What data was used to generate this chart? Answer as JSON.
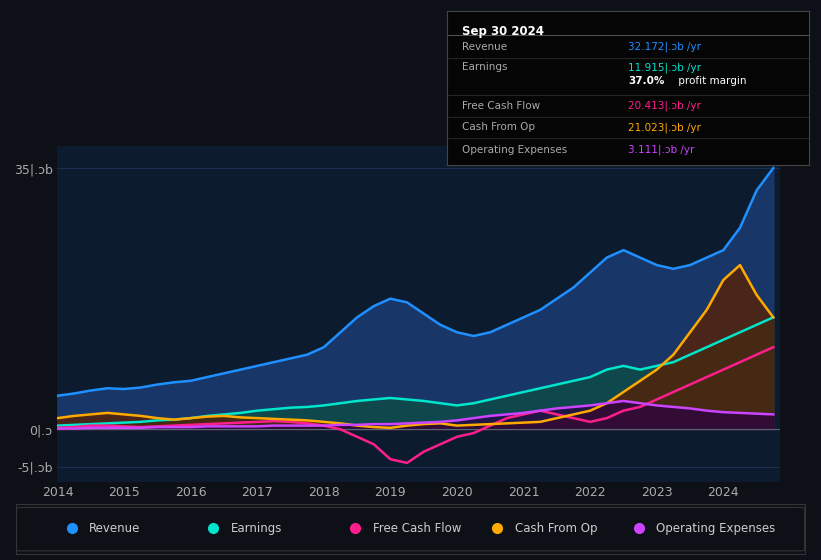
{
  "bg_color": "#0d1117",
  "plot_bg_color": "#0d1b2e",
  "grid_color": "#1e3050",
  "years": [
    2014.0,
    2014.25,
    2014.5,
    2014.75,
    2015.0,
    2015.25,
    2015.5,
    2015.75,
    2016.0,
    2016.25,
    2016.5,
    2016.75,
    2017.0,
    2017.25,
    2017.5,
    2017.75,
    2018.0,
    2018.25,
    2018.5,
    2018.75,
    2019.0,
    2019.25,
    2019.5,
    2019.75,
    2020.0,
    2020.25,
    2020.5,
    2020.75,
    2021.0,
    2021.25,
    2021.5,
    2021.75,
    2022.0,
    2022.25,
    2022.5,
    2022.75,
    2023.0,
    2023.25,
    2023.5,
    2023.75,
    2024.0,
    2024.25,
    2024.5,
    2024.75
  ],
  "revenue": [
    4.5,
    4.8,
    5.2,
    5.5,
    5.4,
    5.6,
    6.0,
    6.3,
    6.5,
    7.0,
    7.5,
    8.0,
    8.5,
    9.0,
    9.5,
    10.0,
    11.0,
    13.0,
    15.0,
    16.5,
    17.5,
    17.0,
    15.5,
    14.0,
    13.0,
    12.5,
    13.0,
    14.0,
    15.0,
    16.0,
    17.5,
    19.0,
    21.0,
    23.0,
    24.0,
    23.0,
    22.0,
    21.5,
    22.0,
    23.0,
    24.0,
    27.0,
    32.0,
    35.0
  ],
  "earnings": [
    0.5,
    0.6,
    0.7,
    0.8,
    0.9,
    1.0,
    1.2,
    1.3,
    1.5,
    1.8,
    2.0,
    2.2,
    2.5,
    2.7,
    2.9,
    3.0,
    3.2,
    3.5,
    3.8,
    4.0,
    4.2,
    4.0,
    3.8,
    3.5,
    3.2,
    3.5,
    4.0,
    4.5,
    5.0,
    5.5,
    6.0,
    6.5,
    7.0,
    8.0,
    8.5,
    8.0,
    8.5,
    9.0,
    10.0,
    11.0,
    12.0,
    13.0,
    14.0,
    15.0
  ],
  "free_cash_flow": [
    0.2,
    0.3,
    0.5,
    0.5,
    0.4,
    0.3,
    0.4,
    0.5,
    0.6,
    0.7,
    0.8,
    0.9,
    1.0,
    1.1,
    1.0,
    0.8,
    0.5,
    0.0,
    -1.0,
    -2.0,
    -4.0,
    -4.5,
    -3.0,
    -2.0,
    -1.0,
    -0.5,
    0.5,
    1.5,
    2.0,
    2.5,
    2.0,
    1.5,
    1.0,
    1.5,
    2.5,
    3.0,
    4.0,
    5.0,
    6.0,
    7.0,
    8.0,
    9.0,
    10.0,
    11.0
  ],
  "cash_from_op": [
    1.5,
    1.8,
    2.0,
    2.2,
    2.0,
    1.8,
    1.5,
    1.3,
    1.5,
    1.7,
    1.8,
    1.6,
    1.5,
    1.4,
    1.3,
    1.2,
    1.0,
    0.8,
    0.5,
    0.3,
    0.2,
    0.5,
    0.7,
    0.8,
    0.5,
    0.6,
    0.7,
    0.8,
    0.9,
    1.0,
    1.5,
    2.0,
    2.5,
    3.5,
    5.0,
    6.5,
    8.0,
    10.0,
    13.0,
    16.0,
    20.0,
    22.0,
    18.0,
    15.0
  ],
  "operating_expenses": [
    0.1,
    0.1,
    0.2,
    0.2,
    0.2,
    0.2,
    0.3,
    0.3,
    0.3,
    0.4,
    0.4,
    0.4,
    0.4,
    0.5,
    0.5,
    0.5,
    0.5,
    0.6,
    0.6,
    0.7,
    0.7,
    0.8,
    0.9,
    1.0,
    1.2,
    1.5,
    1.8,
    2.0,
    2.2,
    2.5,
    2.8,
    3.0,
    3.2,
    3.5,
    3.8,
    3.5,
    3.2,
    3.0,
    2.8,
    2.5,
    2.3,
    2.2,
    2.1,
    2.0
  ],
  "revenue_color": "#1e90ff",
  "earnings_color": "#00e5cc",
  "free_cash_flow_color": "#ff1e8e",
  "cash_from_op_color": "#ffaa00",
  "operating_expenses_color": "#cc44ff",
  "revenue_fill": "#1a3a6e",
  "earnings_fill": "#0d4a4a",
  "ylim_min": -7,
  "ylim_max": 38,
  "xlabel_ticks": [
    2014,
    2015,
    2016,
    2017,
    2018,
    2019,
    2020,
    2021,
    2022,
    2023,
    2024
  ],
  "ytick_values": [
    -5,
    0,
    35
  ],
  "ytick_labels": [
    "-5|.ɔb",
    "0|.ɔ",
    "35|.ɔb"
  ],
  "infobox": {
    "title": "Sep 30 2024",
    "rows": [
      {
        "label": "Revenue",
        "value": "32.172|.ɔb /yr",
        "color": "#1e90ff",
        "bold_part": ""
      },
      {
        "label": "Earnings",
        "value": "11.915|.ɔb /yr",
        "color": "#00e5cc",
        "bold_part": ""
      },
      {
        "label": "",
        "value": " profit margin",
        "color": "#ffffff",
        "bold_part": "37.0%"
      },
      {
        "label": "Free Cash Flow",
        "value": "20.413|.ɔb /yr",
        "color": "#ff1e8e",
        "bold_part": ""
      },
      {
        "label": "Cash From Op",
        "value": "21.023|.ɔb /yr",
        "color": "#ffaa00",
        "bold_part": ""
      },
      {
        "label": "Operating Expenses",
        "value": "3.111|.ɔb /yr",
        "color": "#cc44ff",
        "bold_part": ""
      }
    ]
  },
  "legend_items": [
    {
      "label": "Revenue",
      "color": "#1e90ff"
    },
    {
      "label": "Earnings",
      "color": "#00e5cc"
    },
    {
      "label": "Free Cash Flow",
      "color": "#ff1e8e"
    },
    {
      "label": "Cash From Op",
      "color": "#ffaa00"
    },
    {
      "label": "Operating Expenses",
      "color": "#cc44ff"
    }
  ]
}
